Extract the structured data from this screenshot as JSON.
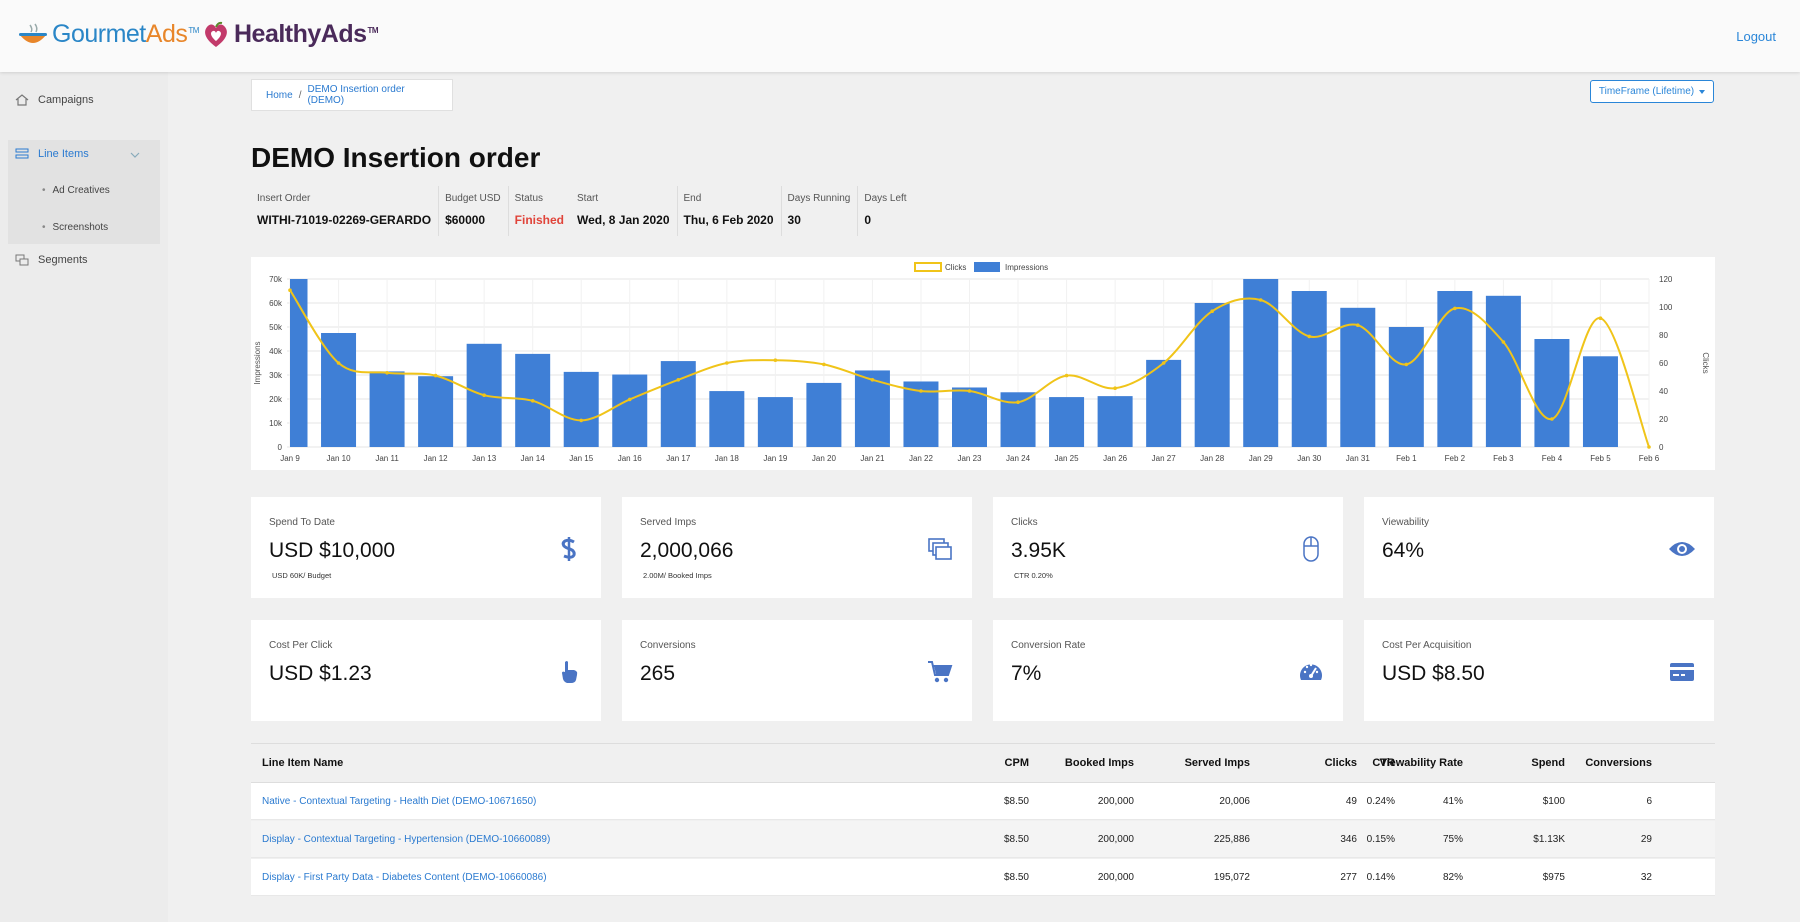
{
  "header": {
    "brand1_main": "Gourmet",
    "brand1_accent": "Ads",
    "brand2": "HealthyAds",
    "tm": "TM",
    "logout": "Logout"
  },
  "sidebar": {
    "items": [
      {
        "label": "Campaigns",
        "icon": "home-icon"
      },
      {
        "label": "Line Items",
        "icon": "list-icon"
      },
      {
        "label": "Segments",
        "icon": "segments-icon"
      }
    ],
    "subitems": [
      "Ad Creatives",
      "Screenshots"
    ]
  },
  "breadcrumb": {
    "home": "Home",
    "sep": "/",
    "current": "DEMO Insertion order (DEMO)"
  },
  "timeframe": "TimeFrame (Lifetime)",
  "title": "DEMO Insertion order",
  "meta": [
    {
      "label": "Insert Order",
      "value": "WITHI-71019-02269-GERARDO"
    },
    {
      "label": "Budget USD",
      "value": "$60000"
    },
    {
      "label": "Status",
      "value": "Finished"
    },
    {
      "label": "Start",
      "value": "Wed, 8 Jan 2020"
    },
    {
      "label": "End",
      "value": "Thu, 6 Feb 2020"
    },
    {
      "label": "Days Running",
      "value": "30"
    },
    {
      "label": "Days Left",
      "value": "0"
    }
  ],
  "chart_data": {
    "type": "bar",
    "categories": [
      "Jan 9",
      "Jan 10",
      "Jan 11",
      "Jan 12",
      "Jan 13",
      "Jan 14",
      "Jan 15",
      "Jan 16",
      "Jan 17",
      "Jan 18",
      "Jan 19",
      "Jan 20",
      "Jan 21",
      "Jan 22",
      "Jan 23",
      "Jan 24",
      "Jan 25",
      "Jan 26",
      "Jan 27",
      "Jan 28",
      "Jan 29",
      "Jan 30",
      "Jan 31",
      "Feb 1",
      "Feb 2",
      "Feb 3",
      "Feb 4",
      "Feb 5",
      "Feb 6"
    ],
    "series": [
      {
        "name": "Impressions",
        "type": "bar",
        "axis": "left",
        "color": "#3f7fd6",
        "values": [
          70000,
          47500,
          31500,
          29500,
          43000,
          38800,
          31300,
          30200,
          35800,
          23300,
          20800,
          26700,
          31900,
          27300,
          24800,
          22800,
          20800,
          21200,
          36300,
          60000,
          70000,
          65000,
          58000,
          50000,
          65000,
          63000,
          45000,
          37800,
          null
        ]
      },
      {
        "name": "Clicks",
        "type": "line",
        "axis": "right",
        "color": "#f0c419",
        "values": [
          112,
          60,
          53,
          51,
          37,
          33,
          19,
          34,
          48,
          60,
          62,
          59,
          48,
          40,
          40,
          32,
          51,
          42,
          60,
          97,
          105,
          79,
          87,
          59,
          99,
          75,
          20,
          92,
          0
        ]
      }
    ],
    "ylabel": "Impressions",
    "y2label": "Clicks",
    "ylim": [
      0,
      70000
    ],
    "y2lim": [
      0,
      120
    ],
    "yticks": [
      "0",
      "10k",
      "20k",
      "30k",
      "40k",
      "50k",
      "60k",
      "70k"
    ],
    "y2ticks": [
      "0",
      "20",
      "40",
      "60",
      "80",
      "100",
      "120"
    ],
    "legend": "top",
    "grid": true
  },
  "kpis": [
    {
      "label": "Spend To Date",
      "value": "USD $10,000",
      "sub": "USD 60K/ Budget",
      "icon": "dollar-icon"
    },
    {
      "label": "Served Imps",
      "value": "2,000,066",
      "sub": "2.00M/ Booked Imps",
      "icon": "copy-icon"
    },
    {
      "label": "Clicks",
      "value": "3.95K",
      "sub": "CTR 0.20%",
      "icon": "mouse-icon"
    },
    {
      "label": "Viewability",
      "value": "64%",
      "sub": "",
      "icon": "eye-icon"
    },
    {
      "label": "Cost Per Click",
      "value": "USD $1.23",
      "sub": "",
      "icon": "pointer-hand-icon"
    },
    {
      "label": "Conversions",
      "value": "265",
      "sub": "",
      "icon": "cart-icon"
    },
    {
      "label": "Conversion Rate",
      "value": "7%",
      "sub": "",
      "icon": "gauge-icon"
    },
    {
      "label": "Cost Per Acquisition",
      "value": "USD $8.50",
      "sub": "",
      "icon": "credit-card-icon"
    }
  ],
  "table": {
    "headers": [
      "Line Item Name",
      "CPM",
      "Booked Imps",
      "Served Imps",
      "Clicks",
      "CTR",
      "Viewability Rate",
      "Spend",
      "Conversions"
    ],
    "rows": [
      [
        "Native - Contextual Targeting - Health Diet (DEMO-10671650)",
        "$8.50",
        "200,000",
        "20,006",
        "49",
        "0.24%",
        "41%",
        "$100",
        "6"
      ],
      [
        "Display - Contextual Targeting - Hypertension (DEMO-10660089)",
        "$8.50",
        "200,000",
        "225,886",
        "346",
        "0.15%",
        "75%",
        "$1.13K",
        "29"
      ],
      [
        "Display - First Party Data - Diabetes Content (DEMO-10660086)",
        "$8.50",
        "200,000",
        "195,072",
        "277",
        "0.14%",
        "82%",
        "$975",
        "32"
      ]
    ]
  },
  "colors": {
    "accent": "#2a86d8",
    "bar": "#3f7fd6",
    "line": "#f0c419",
    "status_finished": "#e0443a",
    "icon": "#4a74c4"
  }
}
